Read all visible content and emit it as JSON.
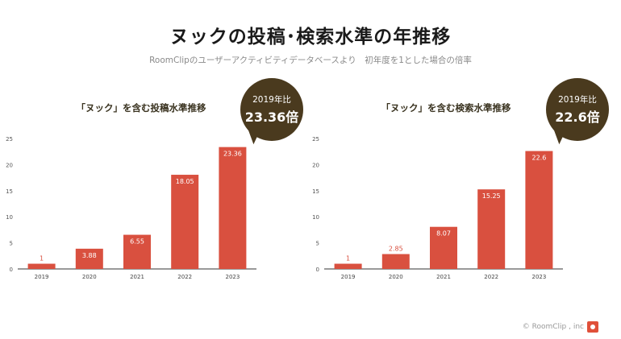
{
  "header": {
    "title": "ヌックの投稿･検索水準の年推移",
    "subtitle": "RoomClipのユーザーアクティビティデータベースより　初年度を1とした場合の倍率"
  },
  "badges": [
    {
      "label": "2019年比",
      "value": "23.36倍"
    },
    {
      "label": "2019年比",
      "value": "22.6倍"
    }
  ],
  "footer": {
    "copyright": "© RoomClip , inc"
  },
  "colors": {
    "bar": "#d9503f",
    "badge": "#4a3a1e"
  },
  "chart_data": [
    {
      "type": "bar",
      "title": "「ヌック」を含む投稿水準推移",
      "categories": [
        "2019",
        "2020",
        "2021",
        "2022",
        "2023"
      ],
      "values": [
        1,
        3.88,
        6.55,
        18.05,
        23.36
      ],
      "value_labels": [
        "1",
        "3.88",
        "6.55",
        "18.05",
        "23.36"
      ],
      "y_ticks": [
        "0",
        "5",
        "10",
        "15",
        "20",
        "25"
      ],
      "ylim": [
        0,
        25
      ],
      "grid": false,
      "xlabel": "",
      "ylabel": ""
    },
    {
      "type": "bar",
      "title": "「ヌック」を含む検索水準推移",
      "categories": [
        "2019",
        "2020",
        "2021",
        "2022",
        "2023"
      ],
      "values": [
        1,
        2.85,
        8.07,
        15.25,
        22.6
      ],
      "value_labels": [
        "1",
        "2.85",
        "8.07",
        "15.25",
        "22.6"
      ],
      "y_ticks": [
        "0",
        "5",
        "10",
        "15",
        "20",
        "25"
      ],
      "ylim": [
        0,
        25
      ],
      "grid": false,
      "xlabel": "",
      "ylabel": ""
    }
  ]
}
